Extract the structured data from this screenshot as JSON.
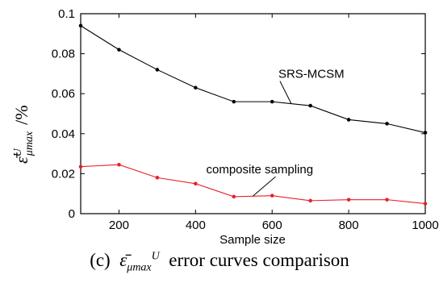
{
  "chart_data": {
    "type": "line",
    "x": [
      100,
      200,
      300,
      400,
      500,
      600,
      700,
      800,
      900,
      1000
    ],
    "xlim": [
      100,
      1000
    ],
    "ylim": [
      0,
      0.1
    ],
    "xticks": [
      "200",
      "400",
      "600",
      "800",
      "1000"
    ],
    "xtick_values": [
      200,
      400,
      600,
      800,
      1000
    ],
    "yticks": [
      "0",
      "0.02",
      "0.04",
      "0.06",
      "0.08",
      "0.1"
    ],
    "ytick_values": [
      0,
      0.02,
      0.04,
      0.06,
      0.08,
      0.1
    ],
    "xlabel": "Sample size",
    "ylabel": {
      "symbol": "ε̄",
      "superscript": "U",
      "subscript": "μmax",
      "unit": "/%"
    },
    "grid": false,
    "series": [
      {
        "name": "SRS-MCSM",
        "color": "#000000",
        "values": [
          0.094,
          0.082,
          0.072,
          0.063,
          0.056,
          0.056,
          0.054,
          0.047,
          0.045,
          0.0405
        ]
      },
      {
        "name": "composite sampling",
        "color": "#e8202a",
        "values": [
          0.0235,
          0.0245,
          0.018,
          0.015,
          0.0085,
          0.009,
          0.0065,
          0.007,
          0.007,
          0.005
        ]
      }
    ]
  },
  "caption": {
    "prefix": "(c)",
    "symbol": "ε̄",
    "superscript": "U",
    "subscript": "μmax",
    "text": "error curves comparison"
  }
}
